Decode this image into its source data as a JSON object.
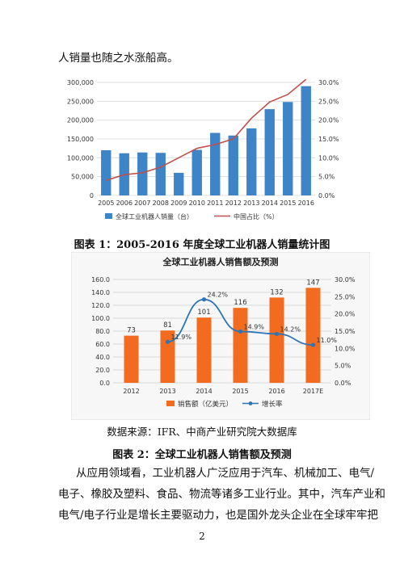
{
  "intro_text": "人销量也随之水涨船高。",
  "chart1_caption": "图表 1：2005-2016 年度全球工业机器人销量统计图",
  "chart2_source": "数据来源：IFR、中商产业研究院大数据库",
  "chart2_caption": "图表 2：全球工业机器人销售额及预测",
  "body_lines": [
    "从应用领域看，工业机器人广泛应用于汽车、机械加工、电气/",
    "电子、橡胶及塑料、食品、物流等诸多工业行业。其中，汽车产业和",
    "电气/电子行业是增长主要驱动力，也是国外龙头企业在全球牢牢把"
  ],
  "page_number": "2",
  "colors": {
    "bar_blue": "#3d85c6",
    "line_red": "#c0504d",
    "bar_orange": "#f26b1f",
    "line_blue": "#2e75b6"
  },
  "chart_data": [
    {
      "type": "bar",
      "categories": [
        "2005",
        "2006",
        "2007",
        "2008",
        "2009",
        "2010",
        "2011",
        "2012",
        "2013",
        "2014",
        "2015",
        "2016"
      ],
      "series": [
        {
          "name": "全球工业机器人销量（台）",
          "type": "bar",
          "axis": "left",
          "values": [
            120000,
            112000,
            114000,
            113000,
            60000,
            121000,
            166000,
            159000,
            178000,
            229000,
            248000,
            290000
          ]
        },
        {
          "name": "中国占比（%）",
          "type": "line",
          "axis": "right",
          "values": [
            4.0,
            5.5,
            6.0,
            7.5,
            10.0,
            12.5,
            13.5,
            15.0,
            20.5,
            24.8,
            26.8,
            30.8
          ]
        }
      ],
      "y_left_ticks": [
        "0",
        "50,000",
        "100,000",
        "150,000",
        "200,000",
        "250,000",
        "300,000"
      ],
      "y_right_ticks": [
        "0.0%",
        "5.0%",
        "10.0%",
        "15.0%",
        "20.0%",
        "25.0%",
        "30.0%"
      ],
      "ylim_left": [
        0,
        300000
      ],
      "ylim_right": [
        0,
        30
      ],
      "grid": true,
      "legend": "bottom"
    },
    {
      "type": "bar",
      "title": "全球工业机器人销售额及预测",
      "categories": [
        "2012",
        "2013",
        "2014",
        "2015",
        "2016",
        "2017E"
      ],
      "series": [
        {
          "name": "销售额（亿美元）",
          "type": "bar",
          "axis": "left",
          "values": [
            73,
            81,
            101,
            116,
            132,
            147
          ],
          "labels": [
            "73",
            "81",
            "101",
            "116",
            "132",
            "147"
          ]
        },
        {
          "name": "增长率",
          "type": "line",
          "axis": "right",
          "values": [
            null,
            11.9,
            24.2,
            14.9,
            14.2,
            11.0
          ],
          "labels": [
            "",
            "11.9%",
            "24.2%",
            "14.9%",
            "14.2%",
            "11.0%"
          ]
        }
      ],
      "y_left_ticks": [
        "0.0",
        "20.0",
        "40.0",
        "60.0",
        "80.0",
        "100.0",
        "120.0",
        "140.0",
        "160.0"
      ],
      "y_right_ticks": [
        "0.0%",
        "5.0%",
        "10.0%",
        "15.0%",
        "20.0%",
        "25.0%",
        "30.0%"
      ],
      "ylim_left": [
        0,
        160
      ],
      "ylim_right": [
        0,
        30
      ],
      "grid": true,
      "legend": "bottom"
    }
  ]
}
